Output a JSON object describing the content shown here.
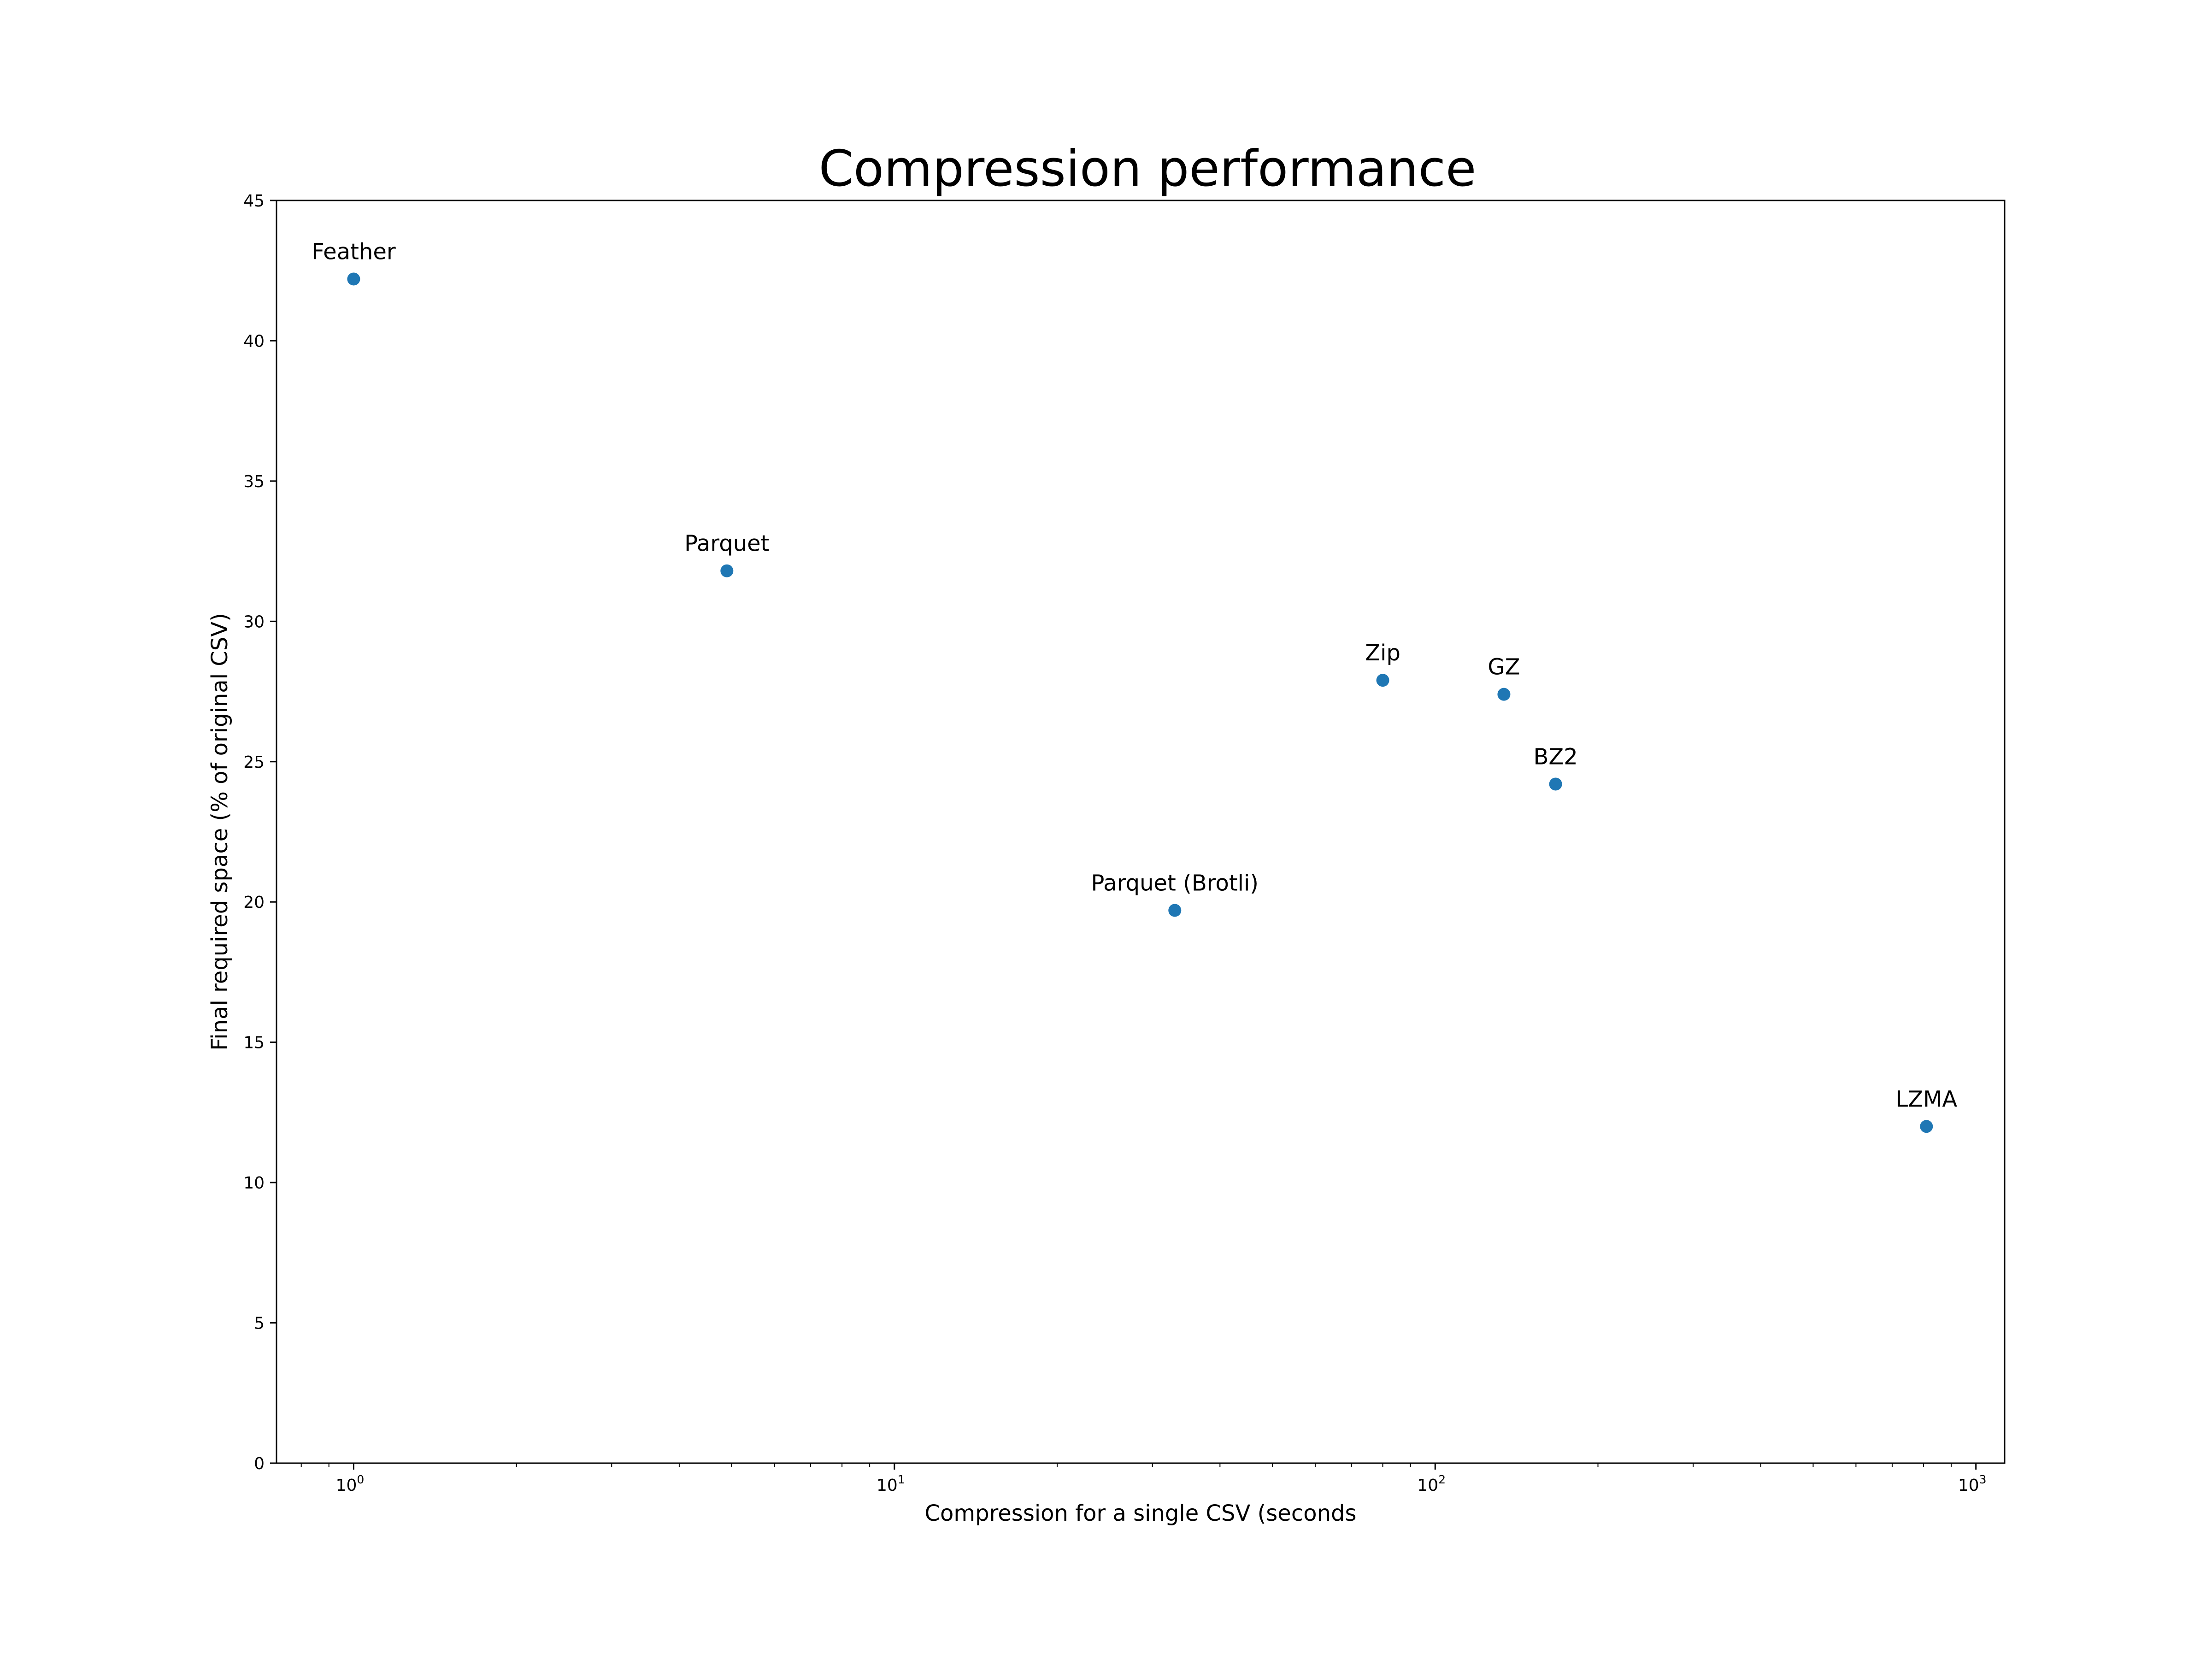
{
  "chart_data": {
    "type": "scatter",
    "title": "Compression performance",
    "xlabel": "Compression for a single CSV (seconds",
    "ylabel": "Final required space (% of original CSV)",
    "x_scale": "log",
    "xlim": [
      0.72,
      1130
    ],
    "ylim": [
      0,
      45
    ],
    "y_ticks": [
      "0",
      "5",
      "10",
      "15",
      "20",
      "25",
      "30",
      "35",
      "40",
      "45"
    ],
    "x_ticks": [
      {
        "base": "10",
        "exp": "0"
      },
      {
        "base": "10",
        "exp": "1"
      },
      {
        "base": "10",
        "exp": "2"
      },
      {
        "base": "10",
        "exp": "3"
      }
    ],
    "grid": false,
    "marker_color": "#1f77b4",
    "points": [
      {
        "label": "Feather",
        "x": 1.0,
        "y": 42.2
      },
      {
        "label": "Parquet",
        "x": 4.9,
        "y": 31.8
      },
      {
        "label": "Parquet (Brotli)",
        "x": 33,
        "y": 19.7
      },
      {
        "label": "Zip",
        "x": 80,
        "y": 27.9
      },
      {
        "label": "GZ",
        "x": 134,
        "y": 27.4
      },
      {
        "label": "BZ2",
        "x": 167,
        "y": 24.2
      },
      {
        "label": "LZMA",
        "x": 810,
        "y": 12.0
      }
    ]
  }
}
